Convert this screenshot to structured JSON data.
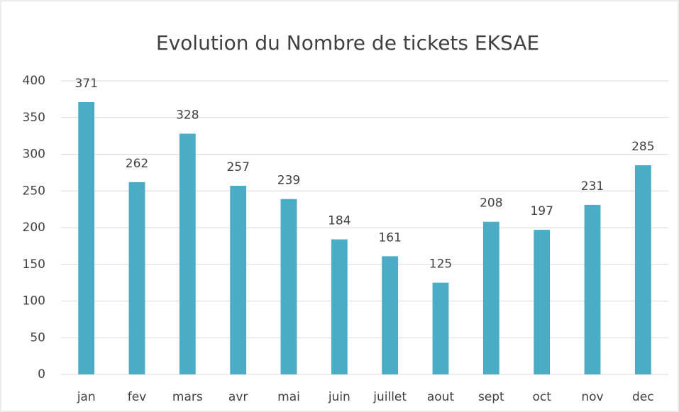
{
  "chart_data": {
    "type": "bar",
    "title": "Evolution du Nombre de tickets EKSAE",
    "categories": [
      "jan",
      "fev",
      "mars",
      "avr",
      "mai",
      "juin",
      "juillet",
      "aout",
      "sept",
      "oct",
      "nov",
      "dec"
    ],
    "values": [
      371,
      262,
      328,
      257,
      239,
      184,
      161,
      125,
      208,
      197,
      231,
      285
    ],
    "color": "#4bacc6",
    "ylim": [
      0,
      400
    ],
    "yticks": [
      0,
      50,
      100,
      150,
      200,
      250,
      300,
      350,
      400
    ],
    "grid": true
  }
}
